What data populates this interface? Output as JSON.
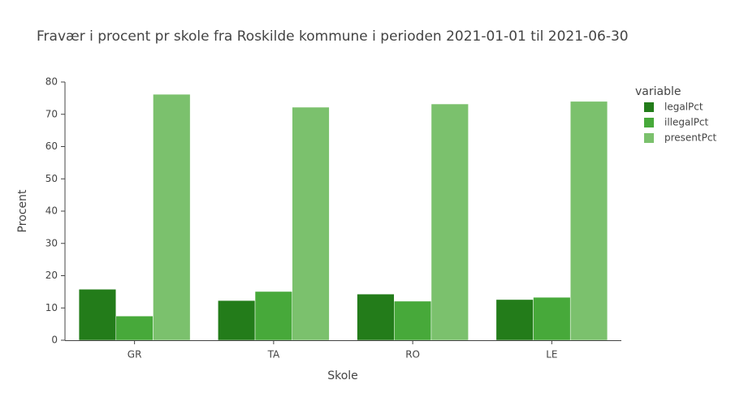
{
  "chart_data": {
    "type": "bar",
    "title": "Fravær i procent pr skole fra Roskilde kommune i perioden 2021-01-01 til 2021-06-30",
    "x_label": "Skole",
    "y_label": "Procent",
    "legend_title": "variable",
    "categories": [
      "GR",
      "TA",
      "RO",
      "LE"
    ],
    "series": [
      {
        "name": "legalPct",
        "color": "#237c1a",
        "values": [
          15.8,
          12.3,
          14.3,
          12.6
        ]
      },
      {
        "name": "illegalPct",
        "color": "#47a93a",
        "values": [
          7.5,
          15.1,
          12.1,
          13.3
        ]
      },
      {
        "name": "presentPct",
        "color": "#7bc16d",
        "values": [
          76.2,
          72.2,
          73.2,
          74.0
        ]
      }
    ],
    "ylim": [
      0,
      80
    ],
    "yticks": [
      0,
      10,
      20,
      30,
      40,
      50,
      60,
      70,
      80
    ],
    "grid": false,
    "legend": "right"
  }
}
